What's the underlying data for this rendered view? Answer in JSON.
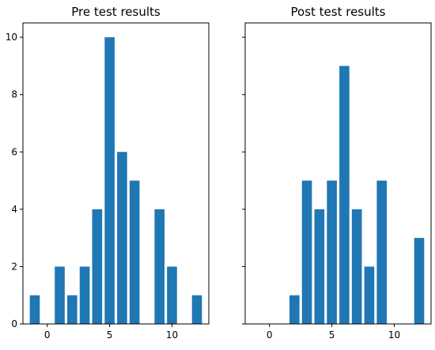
{
  "colors": {
    "bar": "#1f77b4",
    "axis": "#000000",
    "background": "#ffffff"
  },
  "chart_data": [
    {
      "type": "bar",
      "title": "Pre test results",
      "xlabel": "",
      "ylabel": "",
      "x": [
        -1,
        1,
        2,
        3,
        4,
        5,
        6,
        7,
        9,
        10,
        12
      ],
      "values": [
        1,
        2,
        1,
        2,
        4,
        10,
        6,
        5,
        4,
        2,
        1
      ],
      "bar_width": 0.8,
      "xlim": [
        -1.95,
        12.95
      ],
      "ylim": [
        0,
        10.5
      ],
      "xticks": [
        0,
        5,
        10
      ],
      "xtick_labels": [
        "0",
        "5",
        "10"
      ],
      "yticks": [
        0,
        2,
        4,
        6,
        8,
        10
      ],
      "ytick_labels": [
        "0",
        "2",
        "4",
        "6",
        "8",
        "10"
      ],
      "grid": false,
      "legend": "none"
    },
    {
      "type": "bar",
      "title": "Post test results",
      "xlabel": "",
      "ylabel": "",
      "x": [
        2,
        3,
        4,
        5,
        6,
        7,
        8,
        9,
        12
      ],
      "values": [
        1,
        5,
        4,
        5,
        9,
        4,
        2,
        5,
        3
      ],
      "bar_width": 0.8,
      "xlim": [
        -1.95,
        12.95
      ],
      "ylim": [
        0,
        10.5
      ],
      "xticks": [
        0,
        5,
        10
      ],
      "xtick_labels": [
        "0",
        "5",
        "10"
      ],
      "yticks": [
        0,
        2,
        4,
        6,
        8,
        10
      ],
      "ytick_labels": [
        "",
        "",
        "",
        "",
        "",
        ""
      ],
      "grid": false,
      "legend": "none"
    }
  ]
}
